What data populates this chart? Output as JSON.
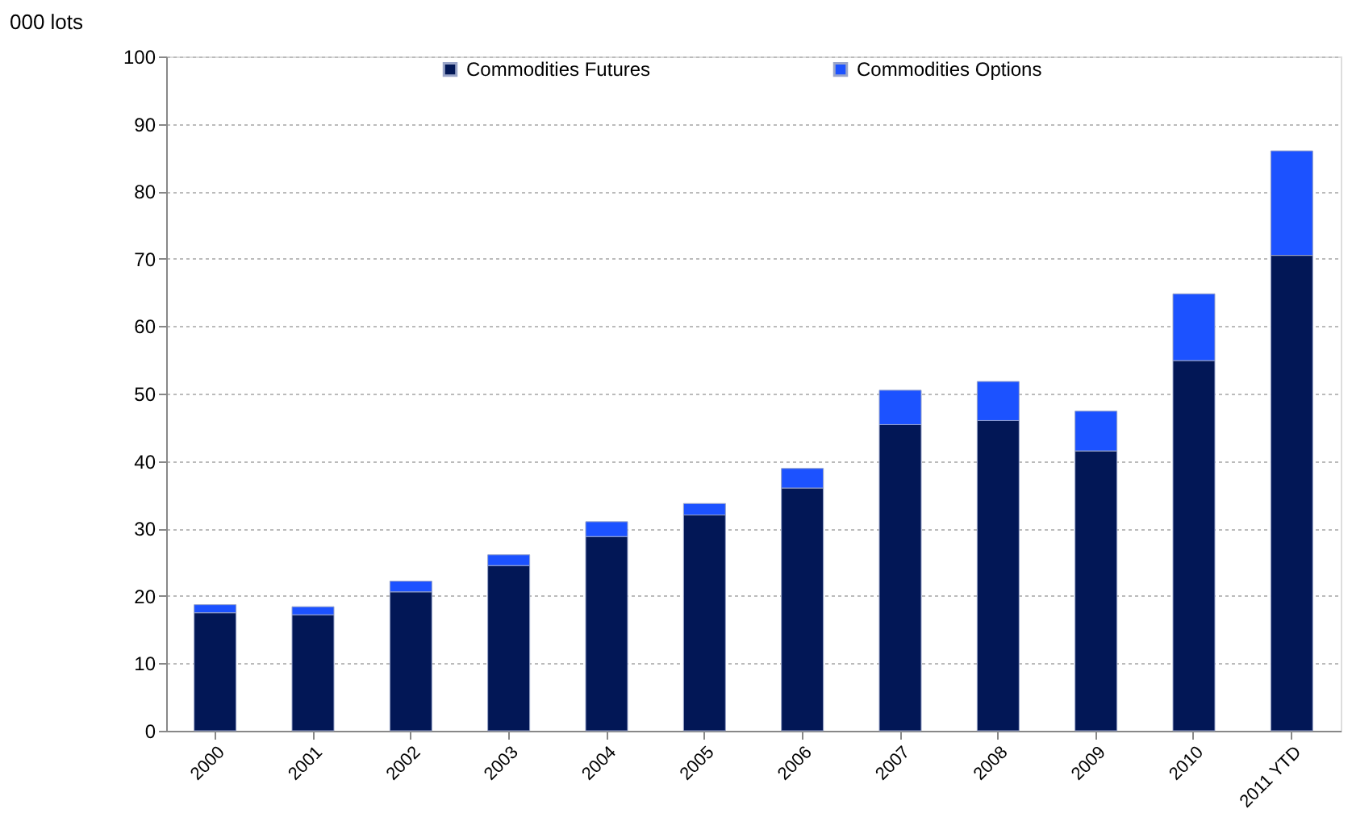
{
  "chart_data": {
    "type": "bar",
    "stacked": true,
    "ylabel": "000 lots",
    "categories": [
      "2000",
      "2001",
      "2002",
      "2003",
      "2004",
      "2005",
      "2006",
      "2007",
      "2008",
      "2009",
      "2010",
      "2011 YTD"
    ],
    "series": [
      {
        "name": "Commodities Futures",
        "color": "#021756",
        "values": [
          17.5,
          17.2,
          20.6,
          24.5,
          28.8,
          32.0,
          36.0,
          45.4,
          46.0,
          41.5,
          54.9,
          70.5
        ]
      },
      {
        "name": "Commodities Options",
        "color": "#1c52ff",
        "values": [
          1.2,
          1.2,
          1.6,
          1.6,
          2.2,
          1.7,
          2.9,
          5.1,
          5.8,
          5.9,
          9.9,
          15.5
        ]
      }
    ],
    "ylim": [
      0,
      100
    ],
    "yticks": [
      0,
      10,
      20,
      30,
      40,
      50,
      60,
      70,
      80,
      90,
      100
    ],
    "grid": "y",
    "legend": "top"
  }
}
